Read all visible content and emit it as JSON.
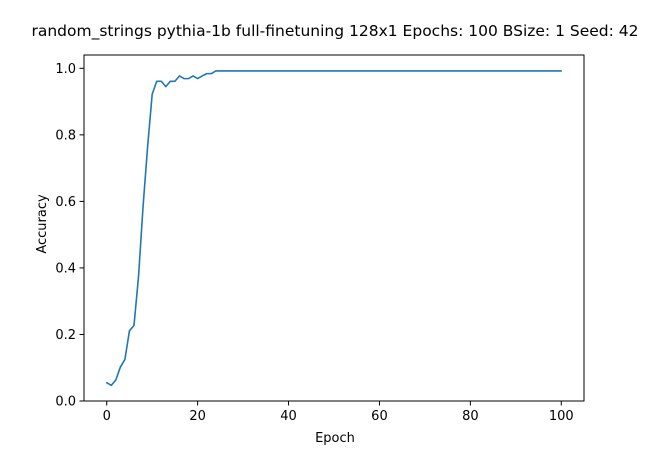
{
  "chart_data": {
    "type": "line",
    "title": "random_strings pythia-1b full-finetuning 128x1 Epochs: 100 BSize: 1 Seed: 42",
    "xlabel": "Epoch",
    "ylabel": "Accuracy",
    "xlim": [
      -5,
      105
    ],
    "ylim": [
      0.0,
      1.04
    ],
    "xticks": [
      0,
      20,
      40,
      60,
      80,
      100
    ],
    "yticks": [
      0.0,
      0.2,
      0.4,
      0.6,
      0.8,
      1.0
    ],
    "xtick_labels": [
      "0",
      "20",
      "40",
      "60",
      "80",
      "100"
    ],
    "ytick_labels": [
      "0.0",
      "0.2",
      "0.4",
      "0.6",
      "0.8",
      "1.0"
    ],
    "grid": false,
    "line_color": "#1f77b4",
    "series": [
      {
        "x": [
          0,
          1,
          2,
          3,
          4,
          5,
          6,
          7,
          8,
          9,
          10,
          11,
          12,
          13,
          14,
          15,
          16,
          17,
          18,
          19,
          20,
          21,
          22,
          23,
          24,
          25,
          26,
          27,
          28,
          29,
          30,
          31,
          32,
          33,
          34,
          35,
          36,
          37,
          38,
          39,
          40,
          41,
          42,
          43,
          44,
          45,
          46,
          47,
          48,
          49,
          50,
          51,
          52,
          53,
          54,
          55,
          56,
          57,
          58,
          59,
          60,
          61,
          62,
          63,
          64,
          65,
          66,
          67,
          68,
          69,
          70,
          71,
          72,
          73,
          74,
          75,
          76,
          77,
          78,
          79,
          80,
          81,
          82,
          83,
          84,
          85,
          86,
          87,
          88,
          89,
          90,
          91,
          92,
          93,
          94,
          95,
          96,
          97,
          98,
          99,
          100
        ],
        "y": [
          0.055,
          0.047,
          0.063,
          0.102,
          0.125,
          0.211,
          0.227,
          0.375,
          0.586,
          0.766,
          0.922,
          0.961,
          0.961,
          0.945,
          0.961,
          0.961,
          0.977,
          0.969,
          0.969,
          0.977,
          0.969,
          0.977,
          0.984,
          0.984,
          0.992,
          0.992,
          0.992,
          0.992,
          0.992,
          0.992,
          0.992,
          0.992,
          0.992,
          0.992,
          0.992,
          0.992,
          0.992,
          0.992,
          0.992,
          0.992,
          0.992,
          0.992,
          0.992,
          0.992,
          0.992,
          0.992,
          0.992,
          0.992,
          0.992,
          0.992,
          0.992,
          0.992,
          0.992,
          0.992,
          0.992,
          0.992,
          0.992,
          0.992,
          0.992,
          0.992,
          0.992,
          0.992,
          0.992,
          0.992,
          0.992,
          0.992,
          0.992,
          0.992,
          0.992,
          0.992,
          0.992,
          0.992,
          0.992,
          0.992,
          0.992,
          0.992,
          0.992,
          0.992,
          0.992,
          0.992,
          0.992,
          0.992,
          0.992,
          0.992,
          0.992,
          0.992,
          0.992,
          0.992,
          0.992,
          0.992,
          0.992,
          0.992,
          0.992,
          0.992,
          0.992,
          0.992,
          0.992,
          0.992,
          0.992,
          0.992,
          0.992
        ]
      }
    ]
  }
}
